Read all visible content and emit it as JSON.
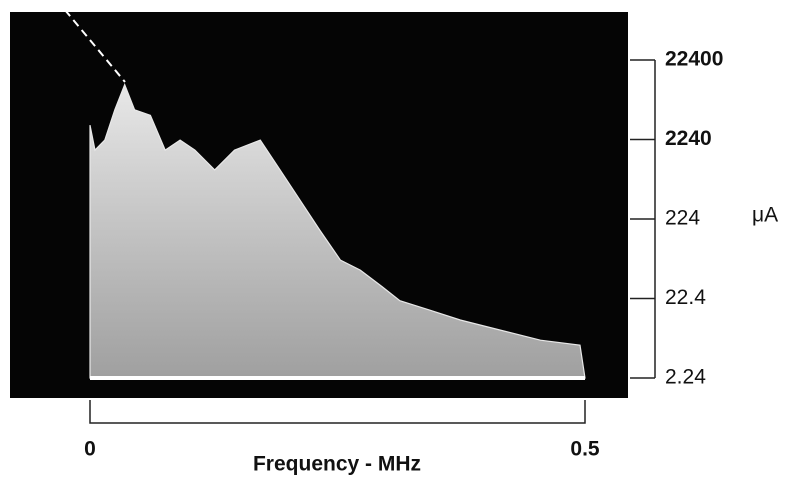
{
  "chart_data": {
    "type": "area",
    "x_label": "Frequency - MHz",
    "y_label": "μA",
    "x": [
      0,
      0,
      0.005,
      0.015,
      0.025,
      0.035,
      0.045,
      0.061,
      0.076,
      0.091,
      0.106,
      0.126,
      0.146,
      0.172,
      0.192,
      0.212,
      0.232,
      0.253,
      0.273,
      0.293,
      0.313,
      0.343,
      0.374,
      0.414,
      0.455,
      0.495,
      0.5
    ],
    "values": [
      2.24,
      3400,
      1650,
      2200,
      5300,
      11000,
      5300,
      4500,
      1650,
      2200,
      1650,
      930,
      1650,
      2200,
      930,
      390,
      163,
      68,
      51,
      33,
      21,
      16,
      12,
      9,
      6.7,
      5.8,
      2.24
    ],
    "color": "#e8e8e8",
    "xlim": [
      0,
      0.5
    ],
    "xticks": [
      0,
      0.5
    ],
    "ylim": [
      2.24,
      22400
    ],
    "yticks": [
      2.24,
      22.4,
      224,
      2240,
      22400
    ],
    "log_y": true
  }
}
